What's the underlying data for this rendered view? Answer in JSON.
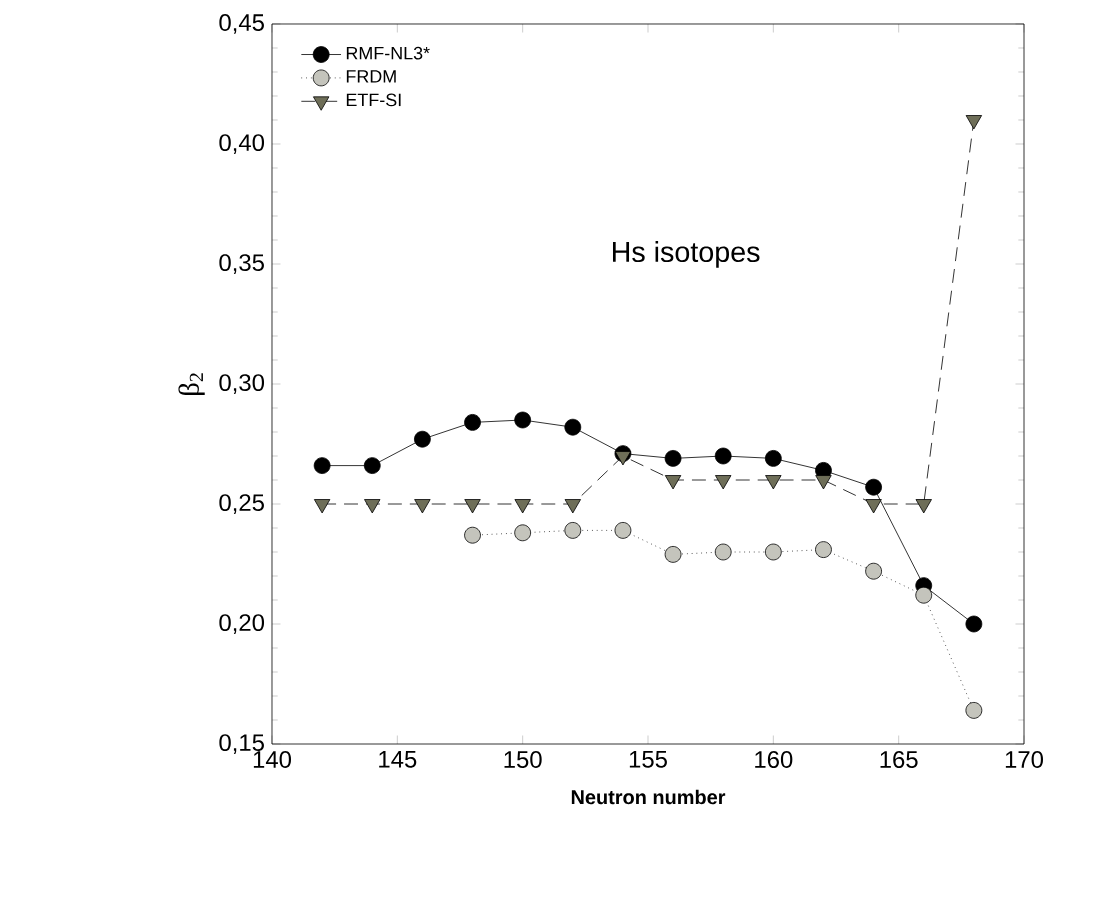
{
  "chart_data": {
    "type": "line",
    "xlabel": "Neutron number",
    "ylabel": "β$_{2}$",
    "annotations": [
      "Hs isotopes"
    ],
    "x": [
      142,
      144,
      146,
      148,
      150,
      152,
      154,
      156,
      158,
      160,
      162,
      164,
      166,
      168
    ],
    "series": [
      {
        "name": "RMF-NL3*",
        "color": "#000000",
        "marker": "circle",
        "line_style": "solid",
        "values": [
          0.266,
          0.266,
          0.277,
          0.284,
          0.285,
          0.282,
          0.271,
          0.269,
          0.27,
          0.269,
          0.264,
          0.257,
          0.216,
          0.2
        ]
      },
      {
        "name": "FRDM",
        "color": "#c4c4bc",
        "marker": "circle",
        "line_style": "dotted",
        "values": [
          null,
          null,
          null,
          0.237,
          0.238,
          0.239,
          0.239,
          0.229,
          0.23,
          0.23,
          0.231,
          0.222,
          0.212,
          0.164
        ]
      },
      {
        "name": "ETF-SI",
        "color": "#6e6e58",
        "marker": "triangle",
        "line_style": "dashed",
        "values": [
          0.25,
          0.25,
          0.25,
          0.25,
          0.25,
          0.25,
          0.27,
          0.26,
          0.26,
          0.26,
          0.26,
          0.25,
          0.25,
          0.41
        ]
      }
    ],
    "xlim": [
      140,
      170
    ],
    "xticks": [
      140,
      145,
      150,
      155,
      160,
      165,
      170
    ],
    "ylim": [
      0.15,
      0.45
    ],
    "yticks": [
      {
        "value": 0.15,
        "label": "0,15"
      },
      {
        "value": 0.2,
        "label": "0,20"
      },
      {
        "value": 0.25,
        "label": "0,25"
      },
      {
        "value": 0.3,
        "label": "0,30"
      },
      {
        "value": 0.35,
        "label": "0,35"
      },
      {
        "value": 0.4,
        "label": "0,40"
      },
      {
        "value": 0.45,
        "label": "0,45"
      }
    ],
    "grid": false,
    "legend": "top left"
  }
}
